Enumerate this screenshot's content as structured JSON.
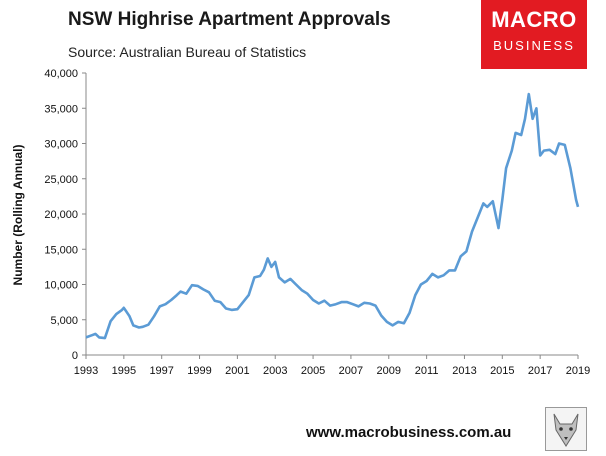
{
  "header": {
    "title": "NSW Highrise Apartment Approvals",
    "subtitle": "Source: Australian Bureau of Statistics"
  },
  "logo": {
    "line1": "MACRO",
    "line2": "BUSINESS"
  },
  "footer": {
    "url": "www.macrobusiness.com.au"
  },
  "colors": {
    "line": "#5b9bd5",
    "logo_bg": "#e21b22"
  },
  "chart_data": {
    "type": "line",
    "title": "NSW Highrise Apartment Approvals",
    "ylabel": "Number (Rolling Annual)",
    "xlabel": "",
    "xlim": [
      1993,
      2019
    ],
    "ylim": [
      0,
      40000
    ],
    "x_ticks": [
      "1993",
      "1995",
      "1997",
      "1999",
      "2001",
      "2003",
      "2005",
      "2007",
      "2009",
      "2011",
      "2013",
      "2015",
      "2017",
      "2019"
    ],
    "y_ticks": [
      "0",
      "5,000",
      "10,000",
      "15,000",
      "20,000",
      "25,000",
      "30,000",
      "35,000",
      "40,000"
    ],
    "grid": false,
    "legend": "none",
    "series": [
      {
        "x": [
          1993,
          1993.3,
          1993.5,
          1993.7,
          1994,
          1994.3,
          1994.6,
          1994.9,
          1995,
          1995.3,
          1995.5,
          1995.8,
          1996,
          1996.3,
          1996.6,
          1996.9,
          1997.2,
          1997.5,
          1997.8,
          1998,
          1998.3,
          1998.6,
          1998.9,
          1999.2,
          1999.5,
          1999.8,
          2000.1,
          2000.4,
          2000.7,
          2001,
          2001.3,
          2001.6,
          2001.9,
          2002.2,
          2002.4,
          2002.6,
          2002.8,
          2003,
          2003.2,
          2003.5,
          2003.8,
          2004.1,
          2004.4,
          2004.7,
          2005,
          2005.3,
          2005.6,
          2005.9,
          2006.2,
          2006.5,
          2006.8,
          2007.1,
          2007.4,
          2007.7,
          2008,
          2008.3,
          2008.6,
          2008.9,
          2009.2,
          2009.5,
          2009.8,
          2010.1,
          2010.4,
          2010.7,
          2011,
          2011.3,
          2011.6,
          2011.9,
          2012.2,
          2012.5,
          2012.8,
          2013.1,
          2013.4,
          2013.7,
          2014,
          2014.2,
          2014.5,
          2014.8,
          2015,
          2015.2,
          2015.5,
          2015.7,
          2016,
          2016.2,
          2016.4,
          2016.6,
          2016.8,
          2017,
          2017.2,
          2017.5,
          2017.8,
          2018,
          2018.3,
          2018.6,
          2018.9,
          2019
        ],
        "y": [
          2500,
          2800,
          3000,
          2500,
          2400,
          4800,
          5800,
          6400,
          6700,
          5500,
          4200,
          3900,
          4000,
          4300,
          5500,
          6900,
          7200,
          7800,
          8500,
          9000,
          8700,
          9900,
          9800,
          9300,
          8900,
          7700,
          7500,
          6600,
          6400,
          6500,
          7500,
          8500,
          11000,
          11200,
          12100,
          13700,
          12500,
          13200,
          11000,
          10300,
          10800,
          10000,
          9200,
          8700,
          7800,
          7300,
          7700,
          7000,
          7200,
          7500,
          7500,
          7200,
          6900,
          7400,
          7300,
          7000,
          5600,
          4700,
          4200,
          4700,
          4500,
          6000,
          8500,
          10000,
          10500,
          11500,
          11000,
          11300,
          12000,
          12000,
          14000,
          14700,
          17500,
          19500,
          21500,
          21000,
          21800,
          18000,
          22000,
          26500,
          29000,
          31500,
          31200,
          33500,
          37000,
          33500,
          35000,
          28300,
          29000,
          29100,
          28500,
          30000,
          29800,
          26500,
          22000,
          21000
        ]
      }
    ]
  }
}
